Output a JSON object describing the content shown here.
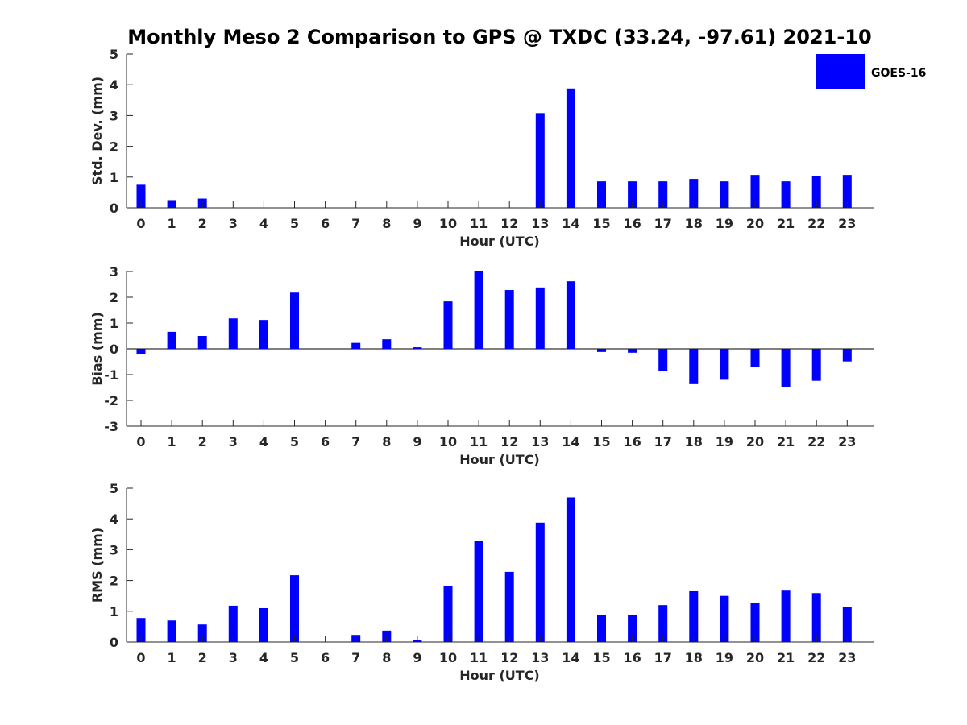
{
  "chart_data": {
    "title": "Monthly Meso 2 Comparison to GPS @ TXDC (33.24, -97.61) 2021-10",
    "legend": {
      "label": "GOES-16",
      "color": "#0000ff",
      "position": "top-right"
    },
    "type": "bar",
    "panels": [
      {
        "id": "std",
        "ylabel": "Std. Dev. (mm)",
        "xlabel": "Hour (UTC)",
        "ylim": [
          0,
          5
        ],
        "yticks": [
          0,
          1,
          2,
          3,
          4,
          5
        ],
        "categories": [
          "0",
          "1",
          "2",
          "3",
          "4",
          "5",
          "6",
          "7",
          "8",
          "9",
          "10",
          "11",
          "12",
          "13",
          "14",
          "15",
          "16",
          "17",
          "18",
          "19",
          "20",
          "21",
          "22",
          "23"
        ],
        "values": [
          0.75,
          0.25,
          0.3,
          0,
          0,
          0,
          0,
          0,
          0,
          0,
          0,
          0,
          0,
          3.08,
          3.88,
          0.86,
          0.86,
          0.86,
          0.94,
          0.86,
          1.07,
          0.86,
          1.04,
          1.07
        ]
      },
      {
        "id": "bias",
        "ylabel": "Bias (mm)",
        "xlabel": "Hour (UTC)",
        "ylim": [
          -3,
          3
        ],
        "yticks": [
          -3,
          -2,
          -1,
          0,
          1,
          2,
          3
        ],
        "categories": [
          "0",
          "1",
          "2",
          "3",
          "4",
          "5",
          "6",
          "7",
          "8",
          "9",
          "10",
          "11",
          "12",
          "13",
          "14",
          "15",
          "16",
          "17",
          "18",
          "19",
          "20",
          "21",
          "22",
          "23"
        ],
        "values": [
          -0.2,
          0.66,
          0.5,
          1.18,
          1.12,
          2.18,
          0,
          0.23,
          0.37,
          0.06,
          1.84,
          3.0,
          2.28,
          2.38,
          2.62,
          -0.12,
          -0.15,
          -0.85,
          -1.37,
          -1.2,
          -0.71,
          -1.47,
          -1.24,
          -0.49
        ]
      },
      {
        "id": "rms",
        "ylabel": "RMS (mm)",
        "xlabel": "Hour (UTC)",
        "ylim": [
          0,
          5
        ],
        "yticks": [
          0,
          1,
          2,
          3,
          4,
          5
        ],
        "categories": [
          "0",
          "1",
          "2",
          "3",
          "4",
          "5",
          "6",
          "7",
          "8",
          "9",
          "10",
          "11",
          "12",
          "13",
          "14",
          "15",
          "16",
          "17",
          "18",
          "19",
          "20",
          "21",
          "22",
          "23"
        ],
        "values": [
          0.78,
          0.7,
          0.57,
          1.18,
          1.1,
          2.17,
          0,
          0.23,
          0.37,
          0.06,
          1.83,
          3.28,
          2.28,
          3.88,
          4.7,
          0.87,
          0.87,
          1.2,
          1.65,
          1.5,
          1.28,
          1.67,
          1.59,
          1.15
        ]
      }
    ]
  }
}
